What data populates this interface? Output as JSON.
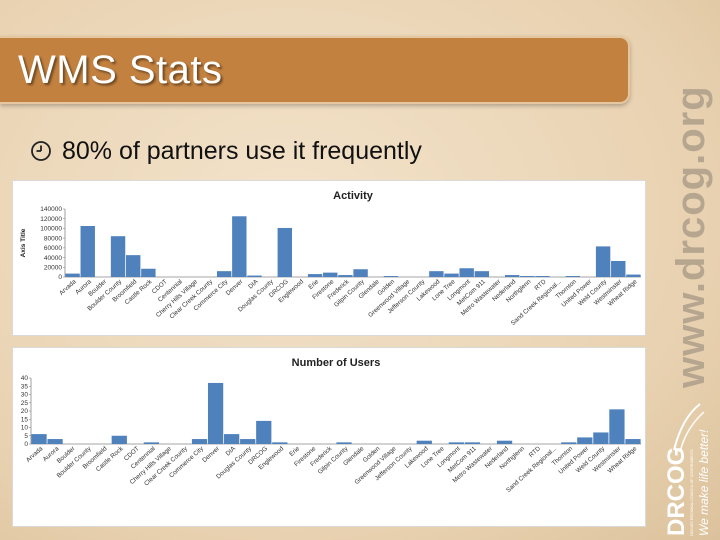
{
  "slide": {
    "title": "WMS Stats",
    "bullet": "80% of partners use it frequently",
    "side_url": "www.drcog.org"
  },
  "logo": {
    "wordmark": "DRCOG",
    "tagline": "We make life better!",
    "subtitle": "DENVER REGIONAL COUNCIL OF GOVERNMENTS"
  },
  "colors": {
    "banner": "#c3813f",
    "bar": "#4f81bd",
    "url_text": "#b7a68f"
  },
  "chart_data": [
    {
      "type": "bar",
      "title": "Activity",
      "xlabel": "",
      "ylabel": "Axis Title",
      "ylim": [
        0,
        140000
      ],
      "yticks": [
        "0",
        "20000",
        "40000",
        "60000",
        "80000",
        "100000",
        "120000",
        "140000"
      ],
      "grid": false,
      "categories": [
        "Arvada",
        "Aurora",
        "Boulder",
        "Boulder County",
        "Broomfield",
        "Castle Rock",
        "CDOT",
        "Centennial",
        "Cherry Hills Village",
        "Clear Creek County",
        "Commerce City",
        "Denver",
        "DIA",
        "Douglas County",
        "DRCOG",
        "Englewood",
        "Erie",
        "Firestone",
        "Frederick",
        "Gilpin County",
        "Glendale",
        "Golden",
        "Greenwood Village",
        "Jefferson County",
        "Lakewood",
        "Lone Tree",
        "Longmont",
        "MetCom 911",
        "Metro Wastewater",
        "Nederland",
        "Northglenn",
        "RTD",
        "Sand Creek Regional...",
        "Thornton",
        "United Power",
        "Weld County",
        "Westminster",
        "Wheat Ridge"
      ],
      "values": [
        7000,
        105000,
        0,
        84000,
        45000,
        17000,
        0,
        0,
        0,
        0,
        12000,
        125000,
        3000,
        0,
        101000,
        0,
        6000,
        9000,
        4000,
        16000,
        0,
        2000,
        0,
        0,
        12000,
        7000,
        18000,
        12000,
        0,
        4000,
        2000,
        2000,
        0,
        2000,
        0,
        63000,
        33000,
        5000
      ]
    },
    {
      "type": "bar",
      "title": "Number of Users",
      "xlabel": "",
      "ylabel": "",
      "ylim": [
        0,
        40
      ],
      "yticks": [
        "0",
        "5",
        "10",
        "15",
        "20",
        "25",
        "30",
        "35",
        "40"
      ],
      "grid": false,
      "categories": [
        "Arvada",
        "Aurora",
        "Boulder",
        "Boulder County",
        "Broomfield",
        "Castle Rock",
        "CDOT",
        "Centennial",
        "Cherry Hills Village",
        "Clear Creek County",
        "Commerce City",
        "Denver",
        "DIA",
        "Douglas County",
        "DRCOG",
        "Englewood",
        "Erie",
        "Firestone",
        "Frederick",
        "Gilpin County",
        "Glendale",
        "Golden",
        "Greenwood Village",
        "Jefferson County",
        "Lakewood",
        "Lone Tree",
        "Longmont",
        "MetCom 911",
        "Metro Wastewater",
        "Nederland",
        "Northglenn",
        "RTD",
        "Sand Creek Regional...",
        "Thornton",
        "United Power",
        "Weld County",
        "Westminster",
        "Wheat Ridge"
      ],
      "values": [
        6,
        3,
        0,
        0,
        0,
        5,
        0,
        1,
        0,
        0,
        3,
        37,
        6,
        3,
        14,
        1,
        0,
        0,
        0,
        1,
        0,
        0,
        0,
        0,
        2,
        0,
        1,
        1,
        0,
        2,
        0,
        0,
        0,
        1,
        4,
        7,
        21,
        3
      ]
    }
  ]
}
